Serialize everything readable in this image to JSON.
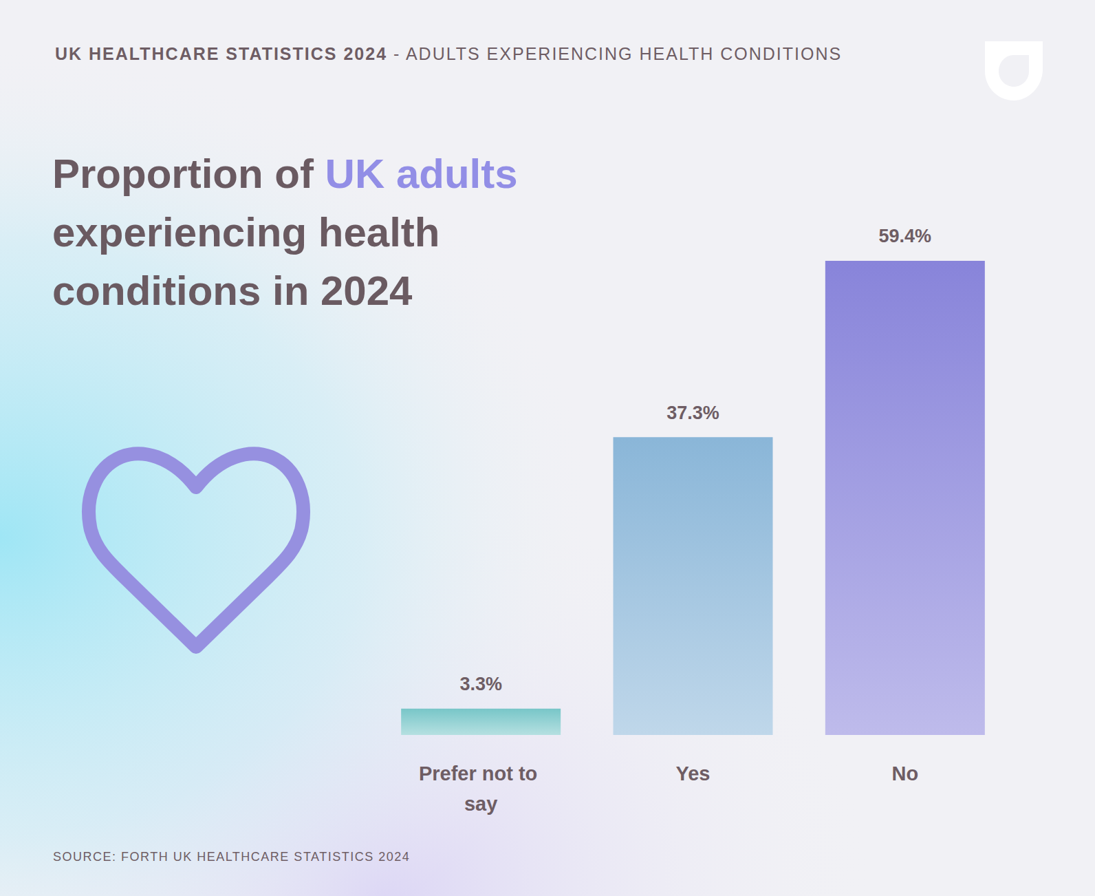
{
  "chart_data": {
    "type": "bar",
    "header": "UK HEALTHCARE STATISTICS 2024",
    "subtitle": "- ADULTS EXPERIENCING HEALTH CONDITIONS",
    "title": "Proportion of UK adults experiencing health conditions in 2024",
    "title_highlight": "UK adults",
    "source": "SOURCE: FORTH UK HEALTHCARE STATISTICS 2024",
    "categories": [
      "Prefer not to say",
      "Yes",
      "No"
    ],
    "values": [
      3.3,
      37.3,
      59.4
    ],
    "value_labels": [
      "3.3%",
      "37.3%",
      "59.4%"
    ],
    "colors": [
      "#78c6c8",
      "#8ab6d8",
      "#8884da"
    ],
    "ylim": [
      0,
      60
    ],
    "grid": false,
    "data_labels": true,
    "tick_labels": "x"
  }
}
